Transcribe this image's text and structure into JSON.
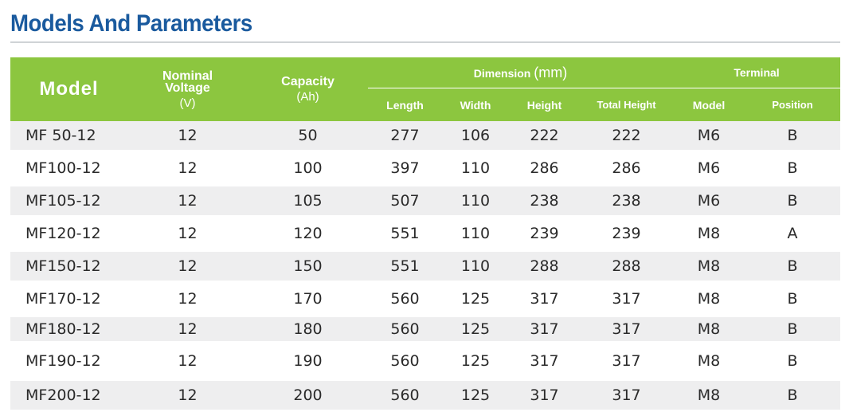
{
  "title": "Models And Parameters",
  "table": {
    "headers": {
      "model": "Model",
      "nominal_voltage": "Nominal Voltage",
      "voltage_unit": "(V)",
      "capacity": "Capacity",
      "capacity_unit": "(Ah)",
      "dimension": "Dimension",
      "dimension_unit": "(mm)",
      "terminal": "Terminal",
      "length": "Length",
      "width": "Width",
      "height": "Height",
      "total_height": "Total Height",
      "terminal_model": "Model",
      "position": "Position"
    },
    "rows": [
      [
        "MF 50-12",
        "12",
        "50",
        "277",
        "106",
        "222",
        "222",
        "M6",
        "B"
      ],
      [
        "MF100-12",
        "12",
        "100",
        "397",
        "110",
        "286",
        "286",
        "M6",
        "B"
      ],
      [
        "MF105-12",
        "12",
        "105",
        "507",
        "110",
        "238",
        "238",
        "M6",
        "B"
      ],
      [
        "MF120-12",
        "12",
        "120",
        "551",
        "110",
        "239",
        "239",
        "M8",
        "A"
      ],
      [
        "MF150-12",
        "12",
        "150",
        "551",
        "110",
        "288",
        "288",
        "M8",
        "B"
      ],
      [
        "MF170-12",
        "12",
        "170",
        "560",
        "125",
        "317",
        "317",
        "M8",
        "B"
      ],
      [
        "MF180-12",
        "12",
        "180",
        "560",
        "125",
        "317",
        "317",
        "M8",
        "B"
      ],
      [
        "MF190-12",
        "12",
        "190",
        "560",
        "125",
        "317",
        "317",
        "M8",
        "B"
      ],
      [
        "MF200-12",
        "12",
        "200",
        "560",
        "125",
        "317",
        "317",
        "M8",
        "B"
      ]
    ]
  },
  "colors": {
    "title": "#1a5a9e",
    "header_bg": "#8cc63f",
    "stripe": "#eeeeef"
  }
}
